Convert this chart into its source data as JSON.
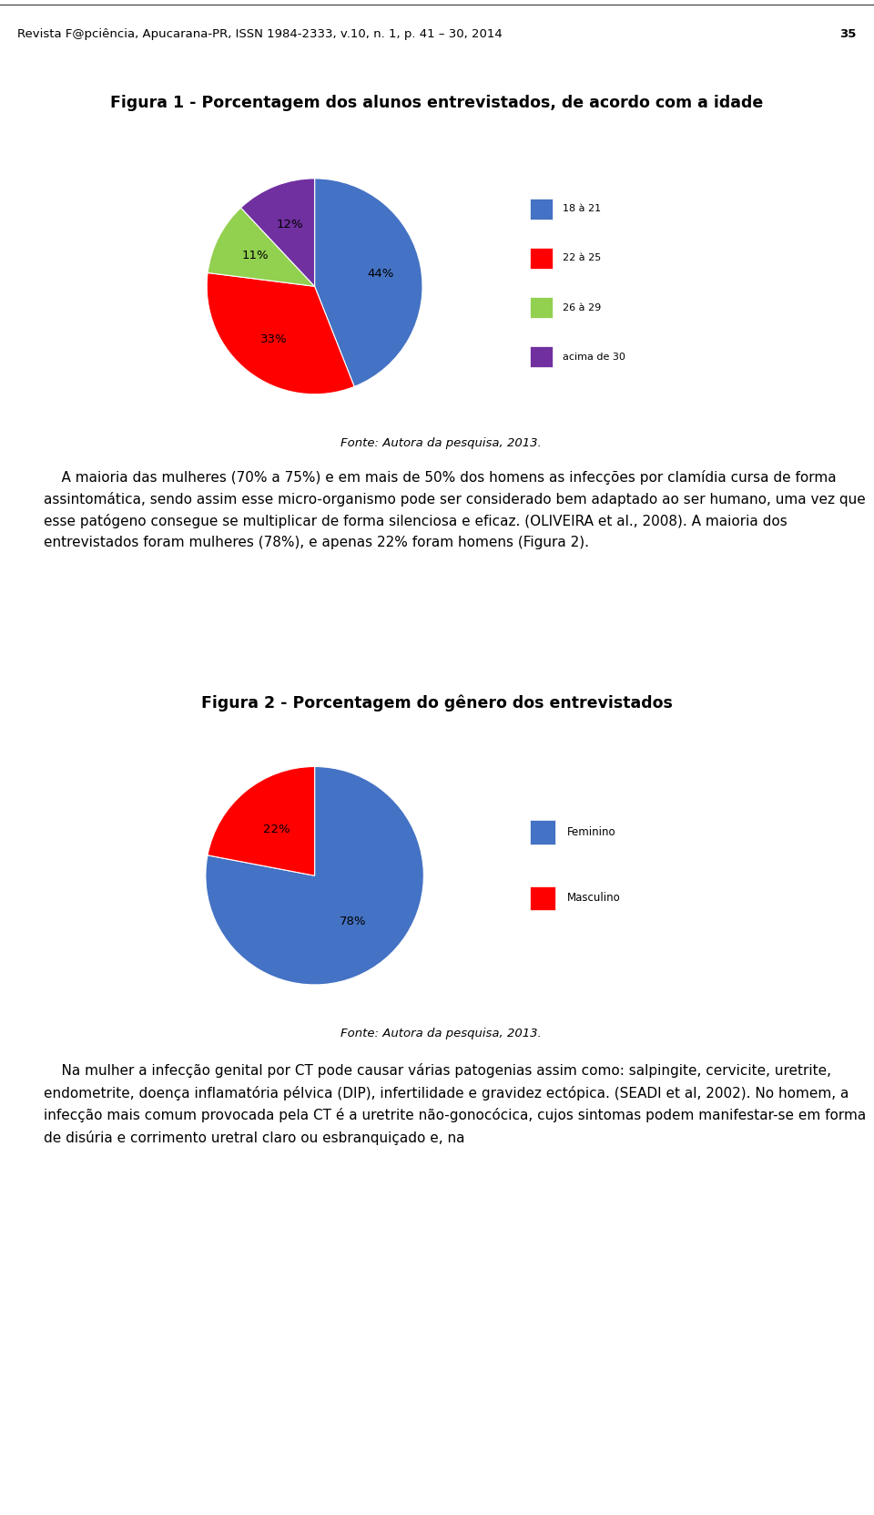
{
  "header_text": "Revista F@pciência, Apucarana-PR, ISSN 1984-2333, v.10, n. 1, p. 41 – 30, 2014",
  "header_page": "35",
  "fig1_title": "Figura 1 - Porcentagem dos alunos entrevistados, de acordo com a idade",
  "fig1_values": [
    44,
    33,
    11,
    12
  ],
  "fig1_labels": [
    "18 à 21",
    "22 à 25",
    "26 à 29",
    "acima de 30"
  ],
  "fig1_colors": [
    "#4472C4",
    "#FF0000",
    "#92D050",
    "#7030A0"
  ],
  "fig1_pct_labels": [
    "44%",
    "33%",
    "11%",
    "12%"
  ],
  "fig1_source": "Fonte: Autora da pesquisa, 2013.",
  "paragraph1": "    A maioria das mulheres (70% a 75%) e em mais de 50% dos homens as infecções por clamídia cursa de forma assintomática, sendo assim esse micro-organismo pode ser considerado bem adaptado ao ser humano, uma vez que esse patógeno consegue se multiplicar de forma silenciosa e eficaz. (OLIVEIRA et al., 2008). A maioria dos entrevistados foram mulheres (78%), e apenas 22% foram homens (Figura 2).",
  "fig2_title": "Figura 2 - Porcentagem do gênero dos entrevistados",
  "fig2_values": [
    78,
    22
  ],
  "fig2_labels": [
    "Feminino",
    "Masculino"
  ],
  "fig2_colors": [
    "#4472C4",
    "#FF0000"
  ],
  "fig2_pct_labels": [
    "78%",
    "22%"
  ],
  "fig2_source": "Fonte: Autora da pesquisa, 2013.",
  "paragraph2": "    Na mulher a infecção genital por CT pode causar várias patogenias assim como: salpingite, cervicite, uretrite, endometrite, doença inflamatória pélvica (DIP), infertilidade e gravidez ectópica. (SEADI et al, 2002). No homem, a infecção mais comum provocada pela CT é a uretrite não-gonocócica, cujos sintomas podem manifestar-se em forma de disúria e corrimento uretral claro ou esbranquiçado e, na",
  "bg_color": "#ffffff",
  "chart_bg_color": "#C8D9EE",
  "text_color": "#000000",
  "header_line_color": "#000000"
}
